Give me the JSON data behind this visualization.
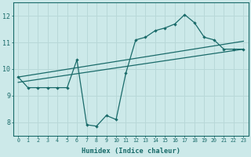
{
  "xlabel": "Humidex (Indice chaleur)",
  "bg_color": "#cce9e9",
  "grid_color": "#b8d8d8",
  "line_color": "#1a6b6a",
  "xlim": [
    -0.5,
    23.5
  ],
  "ylim": [
    7.5,
    12.5
  ],
  "xticks": [
    0,
    1,
    2,
    3,
    4,
    5,
    6,
    7,
    8,
    9,
    10,
    11,
    12,
    13,
    14,
    15,
    16,
    17,
    18,
    19,
    20,
    21,
    22,
    23
  ],
  "yticks": [
    8,
    9,
    10,
    11,
    12
  ],
  "line_jagged_x": [
    0,
    1,
    2,
    3,
    4,
    5,
    6,
    7,
    8,
    9,
    10,
    11,
    12,
    13,
    14,
    15,
    16,
    17,
    18,
    19,
    20,
    21,
    22,
    23
  ],
  "line_jagged_y": [
    9.7,
    9.3,
    9.3,
    9.3,
    9.3,
    9.3,
    10.35,
    7.9,
    7.85,
    8.25,
    8.1,
    9.85,
    11.1,
    11.2,
    11.45,
    11.55,
    11.7,
    12.05,
    11.75,
    11.2,
    11.1,
    10.75,
    10.75,
    10.75
  ],
  "trend1_x": [
    0,
    23
  ],
  "trend1_y": [
    9.5,
    10.75
  ],
  "trend2_x": [
    0,
    23
  ],
  "trend2_y": [
    9.7,
    11.05
  ]
}
